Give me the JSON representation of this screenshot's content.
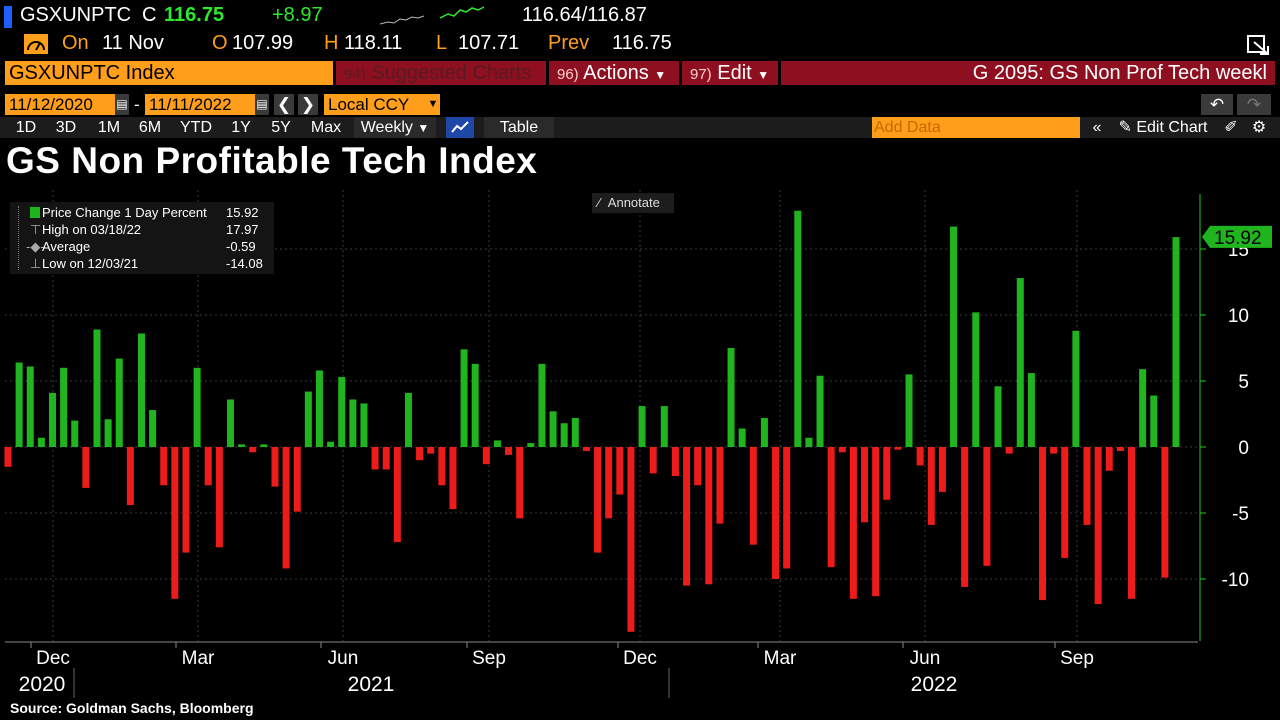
{
  "quote": {
    "ticker": "GSXUNPTC",
    "c_label": "C",
    "last": "116.75",
    "change": "+8.97",
    "bid_ask": "116.64/116.87",
    "on_label": "On",
    "date": "11 Nov",
    "o_label": "O",
    "open": "107.99",
    "h_label": "H",
    "high": "118.11",
    "l_label": "L",
    "low": "107.71",
    "prev_label": "Prev",
    "prev": "116.75"
  },
  "cmdbar": {
    "security": "GSXUNPTC Index",
    "suggested_num": "94)",
    "suggested": "Suggested Charts",
    "actions_num": "96)",
    "actions": "Actions",
    "edit_num": "97)",
    "edit": "Edit",
    "chart_name": "G 2095: GS Non Prof Tech weekl"
  },
  "daterange": {
    "start": "11/12/2020",
    "sep": "-",
    "end": "11/11/2022",
    "currency": "Local CCY"
  },
  "periods": [
    "1D",
    "3D",
    "1M",
    "6M",
    "YTD",
    "1Y",
    "5Y",
    "Max"
  ],
  "frequency": "Weekly",
  "table_label": "Table",
  "add_data_placeholder": "Add Data",
  "edit_chart": "Edit Chart",
  "annotate": "Annotate",
  "legend": {
    "rows": [
      {
        "label": "Price Change 1 Day Percent",
        "value": "15.92"
      },
      {
        "label": "High on 03/18/22",
        "value": "17.97"
      },
      {
        "label": "Average",
        "value": "-0.59"
      },
      {
        "label": "Low on 12/03/21",
        "value": "-14.08"
      }
    ]
  },
  "source": "Source: Goldman Sachs, Bloomberg",
  "colors": {
    "positive": "#20b41e",
    "negative": "#ee1b1b",
    "axis": "#26c826",
    "orange": "#ff9e1a",
    "red_bar": "#8d0f20"
  },
  "chart_data": {
    "type": "bar",
    "title": "GS Non Profitable Tech Index",
    "series_name": "Price Change 1 Day Percent",
    "ylim": [
      -14.5,
      19
    ],
    "yticks": [
      -10,
      -5,
      0,
      5,
      10,
      15
    ],
    "last_value_label": "15.92",
    "x_month_labels": [
      "Dec",
      "Mar",
      "Jun",
      "Sep",
      "Dec",
      "Mar",
      "Jun",
      "Sep"
    ],
    "x_year_labels": [
      "2020",
      "2021",
      "2022"
    ],
    "values": [
      -1.5,
      6.4,
      6.1,
      0.7,
      4.1,
      6.0,
      2.0,
      -3.1,
      8.9,
      2.1,
      6.7,
      -4.4,
      8.6,
      2.8,
      -2.9,
      -11.5,
      -8.0,
      6.0,
      -2.9,
      -7.6,
      3.6,
      0.2,
      -0.4,
      0.2,
      -3.0,
      -9.2,
      -4.9,
      4.2,
      5.8,
      0.4,
      5.3,
      3.6,
      3.3,
      -1.7,
      -1.7,
      -7.2,
      4.1,
      -1.0,
      -0.5,
      -2.9,
      -4.7,
      7.4,
      6.3,
      -1.3,
      0.5,
      -0.6,
      -5.4,
      0.3,
      6.3,
      2.7,
      1.8,
      2.2,
      -0.3,
      -8.0,
      -5.4,
      -3.6,
      -14.0,
      3.1,
      -2.0,
      3.1,
      -2.2,
      -10.5,
      -2.9,
      -10.4,
      -5.8,
      7.5,
      1.4,
      -7.4,
      2.2,
      -10.0,
      -9.2,
      17.9,
      0.7,
      5.4,
      -9.1,
      -0.4,
      -11.5,
      -5.7,
      -11.3,
      -4.0,
      -0.2,
      5.5,
      -1.4,
      -5.9,
      -3.4,
      16.7,
      -10.6,
      10.2,
      -9.0,
      4.6,
      -0.5,
      12.8,
      5.6,
      -11.6,
      -0.5,
      -8.4,
      8.8,
      -5.9,
      -11.9,
      -1.8,
      -0.3,
      -11.5,
      5.9,
      3.9,
      -9.9,
      15.9
    ]
  }
}
